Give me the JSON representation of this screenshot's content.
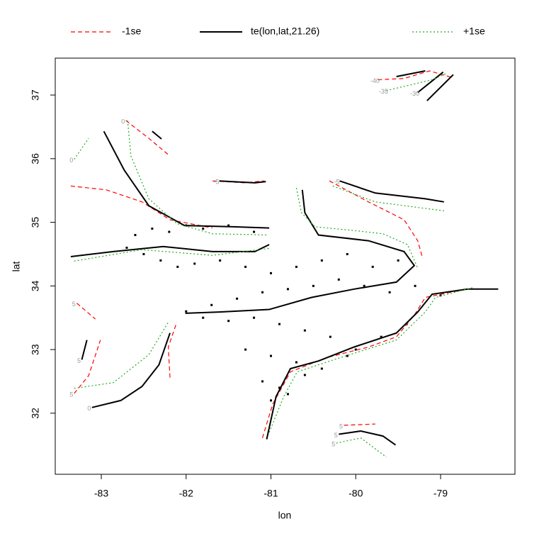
{
  "chart_data": {
    "type": "contour",
    "x_label": "lon",
    "y_label": "lat",
    "xlim": [
      -83.543,
      -78.123
    ],
    "ylim": [
      31.04,
      37.58
    ],
    "xticks": [
      -83,
      -82,
      -81,
      -80,
      -79
    ],
    "yticks": [
      32,
      33,
      34,
      35,
      36,
      37
    ],
    "legend": "top",
    "series": [
      {
        "name": "-1se",
        "color": "#ff0000",
        "linestyle": "dashed",
        "lines": [
          {
            "x": [
              -82.71,
              -82.44,
              -82.19
            ],
            "y": [
              36.6,
              36.32,
              36.04
            ],
            "label": "0"
          },
          {
            "x": [
              -83.36,
              -82.94,
              -82.52,
              -82.19,
              -81.69
            ],
            "y": [
              35.57,
              35.51,
              35.32,
              35.04,
              34.91
            ]
          },
          {
            "x": [
              -80.31,
              -79.85,
              -79.43,
              -79.27,
              -79.21
            ],
            "y": [
              35.65,
              35.32,
              35.04,
              34.71,
              34.43
            ]
          },
          {
            "x": [
              -83.29,
              -83.07
            ],
            "y": [
              33.73,
              33.48
            ],
            "label": "5"
          },
          {
            "x": [
              -83.32,
              -83.15,
              -83.01
            ],
            "y": [
              32.31,
              32.59,
              33.15
            ],
            "label": "5"
          },
          {
            "x": [
              -82.19,
              -82.21,
              -82.11
            ],
            "y": [
              32.56,
              33.04,
              33.43
            ]
          },
          {
            "x": [
              -81.1,
              -80.98,
              -80.77,
              -80.35,
              -79.85,
              -79.52,
              -79.31,
              -79.18,
              -78.77
            ],
            "y": [
              31.61,
              32.14,
              32.65,
              32.87,
              33.04,
              33.2,
              33.54,
              33.82,
              33.93
            ]
          },
          {
            "x": [
              -81.69,
              -81.31,
              -81.08
            ],
            "y": [
              35.65,
              35.62,
              35.65
            ]
          },
          {
            "x": [
              -80.14,
              -79.77
            ],
            "y": [
              31.81,
              31.83
            ],
            "label": "5"
          },
          {
            "x": [
              -79.74,
              -79.43,
              -79.13,
              -78.85
            ],
            "y": [
              37.24,
              37.26,
              37.38,
              37.27
            ],
            "label": "-40"
          }
        ]
      },
      {
        "name": "te(lon,lat,21.26)",
        "color": "#000000",
        "linestyle": "solid",
        "lines": [
          {
            "x": [
              -82.97,
              -82.73,
              -82.44,
              -82.02,
              -81.44,
              -81.02
            ],
            "y": [
              36.43,
              35.82,
              35.26,
              34.95,
              34.93,
              34.91
            ]
          },
          {
            "x": [
              -82.4,
              -82.29
            ],
            "y": [
              36.43,
              36.31
            ]
          },
          {
            "x": [
              -83.36,
              -82.86,
              -82.27,
              -81.69,
              -81.19,
              -81.02
            ],
            "y": [
              34.46,
              34.54,
              34.62,
              34.54,
              34.54,
              34.65
            ]
          },
          {
            "x": [
              -80.63,
              -80.6,
              -80.44,
              -79.85,
              -79.43,
              -79.31,
              -79.52,
              -80.02,
              -80.52,
              -81.02,
              -81.61,
              -82.01
            ],
            "y": [
              35.51,
              35.15,
              34.8,
              34.71,
              34.54,
              34.32,
              34.06,
              33.95,
              33.82,
              33.63,
              33.59,
              33.57
            ]
          },
          {
            "x": [
              -81.05,
              -80.94,
              -80.77,
              -80.44,
              -80.02,
              -79.52,
              -79.27,
              -79.1,
              -78.68,
              -78.32
            ],
            "y": [
              31.59,
              32.26,
              32.7,
              32.82,
              33.04,
              33.26,
              33.59,
              33.87,
              33.95,
              33.95
            ]
          },
          {
            "x": [
              -83.11,
              -82.77,
              -82.52,
              -82.32,
              -82.19
            ],
            "y": [
              32.09,
              32.2,
              32.42,
              32.76,
              33.26
            ],
            "label": "0"
          },
          {
            "x": [
              -83.23,
              -83.17
            ],
            "y": [
              32.84,
              33.15
            ],
            "label": "5"
          },
          {
            "x": [
              -80.19,
              -79.77,
              -79.18,
              -78.96
            ],
            "y": [
              35.65,
              35.46,
              35.37,
              35.32
            ],
            "label": "-5"
          },
          {
            "x": [
              -81.61,
              -81.19,
              -81.06
            ],
            "y": [
              35.65,
              35.62,
              35.64
            ],
            "label": "-5"
          },
          {
            "x": [
              -80.2,
              -79.94,
              -79.68,
              -79.53
            ],
            "y": [
              31.67,
              31.72,
              31.64,
              31.5
            ],
            "label": "5"
          },
          {
            "x": [
              -79.52,
              -79.18
            ],
            "y": [
              37.29,
              37.38
            ]
          },
          {
            "x": [
              -79.27,
              -78.97
            ],
            "y": [
              37.04,
              37.36
            ],
            "label": "-30"
          },
          {
            "x": [
              -79.16,
              -78.85
            ],
            "y": [
              36.91,
              37.32
            ]
          }
        ]
      },
      {
        "name": "+1se",
        "color": "#22aa22",
        "linestyle": "dotted",
        "lines": [
          {
            "x": [
              -83.32,
              -83.15
            ],
            "y": [
              35.99,
              36.32
            ],
            "label": "0"
          },
          {
            "x": [
              -82.69,
              -82.65,
              -82.44,
              -82.11,
              -81.69,
              -81.04
            ],
            "y": [
              36.6,
              36.04,
              35.37,
              34.98,
              34.82,
              34.8
            ]
          },
          {
            "x": [
              -80.7,
              -80.64,
              -80.48,
              -80.02,
              -79.68,
              -79.39,
              -79.27
            ],
            "y": [
              35.54,
              35.15,
              34.93,
              34.87,
              34.82,
              34.65,
              34.28
            ]
          },
          {
            "x": [
              -83.32,
              -82.52,
              -81.69,
              -81.02
            ],
            "y": [
              34.39,
              34.57,
              34.48,
              34.59
            ]
          },
          {
            "x": [
              -83.32,
              -82.86,
              -82.44,
              -82.21
            ],
            "y": [
              32.39,
              32.48,
              32.92,
              33.43
            ]
          },
          {
            "x": [
              -81.02,
              -80.85,
              -80.69,
              -80.19,
              -79.52,
              -79.18,
              -79.06,
              -78.6
            ],
            "y": [
              31.7,
              32.26,
              32.65,
              32.87,
              33.15,
              33.59,
              33.82,
              33.98
            ]
          },
          {
            "x": [
              -80.23,
              -79.94,
              -79.64
            ],
            "y": [
              31.53,
              31.61,
              31.31
            ],
            "label": "5"
          },
          {
            "x": [
              -80.27,
              -79.77,
              -78.96
            ],
            "y": [
              35.57,
              35.32,
              35.18
            ]
          },
          {
            "x": [
              -79.64,
              -79.1,
              -78.93
            ],
            "y": [
              37.07,
              37.24,
              37.34
            ],
            "label": "-35"
          }
        ]
      }
    ],
    "points": {
      "color": "#000000",
      "x": [
        -82.6,
        -82.4,
        -82.2,
        -82.0,
        -81.8,
        -81.5,
        -81.2,
        -82.7,
        -82.5,
        -82.3,
        -82.1,
        -81.9,
        -81.6,
        -81.3,
        -81.0,
        -80.7,
        -80.4,
        -80.1,
        -79.8,
        -79.5,
        -82.0,
        -81.7,
        -81.4,
        -81.1,
        -80.8,
        -80.5,
        -80.2,
        -79.9,
        -79.6,
        -79.3,
        -79.0,
        -81.8,
        -81.5,
        -81.2,
        -80.9,
        -80.6,
        -80.3,
        -80.0,
        -79.7,
        -79.4,
        -81.3,
        -81.0,
        -80.7,
        -80.4,
        -80.1,
        -81.1,
        -80.9,
        -80.6,
        -81.0,
        -80.8
      ],
      "y": [
        34.8,
        34.9,
        34.85,
        34.95,
        34.9,
        34.95,
        34.85,
        34.6,
        34.5,
        34.4,
        34.3,
        34.35,
        34.4,
        34.3,
        34.2,
        34.3,
        34.4,
        34.5,
        34.3,
        34.4,
        33.6,
        33.7,
        33.8,
        33.9,
        33.95,
        34.0,
        34.1,
        34.0,
        33.9,
        34.0,
        33.85,
        33.5,
        33.45,
        33.5,
        33.4,
        33.3,
        33.2,
        33.0,
        33.2,
        33.4,
        33.0,
        32.9,
        32.8,
        32.7,
        32.9,
        32.5,
        32.4,
        32.6,
        32.2,
        32.3
      ]
    }
  }
}
